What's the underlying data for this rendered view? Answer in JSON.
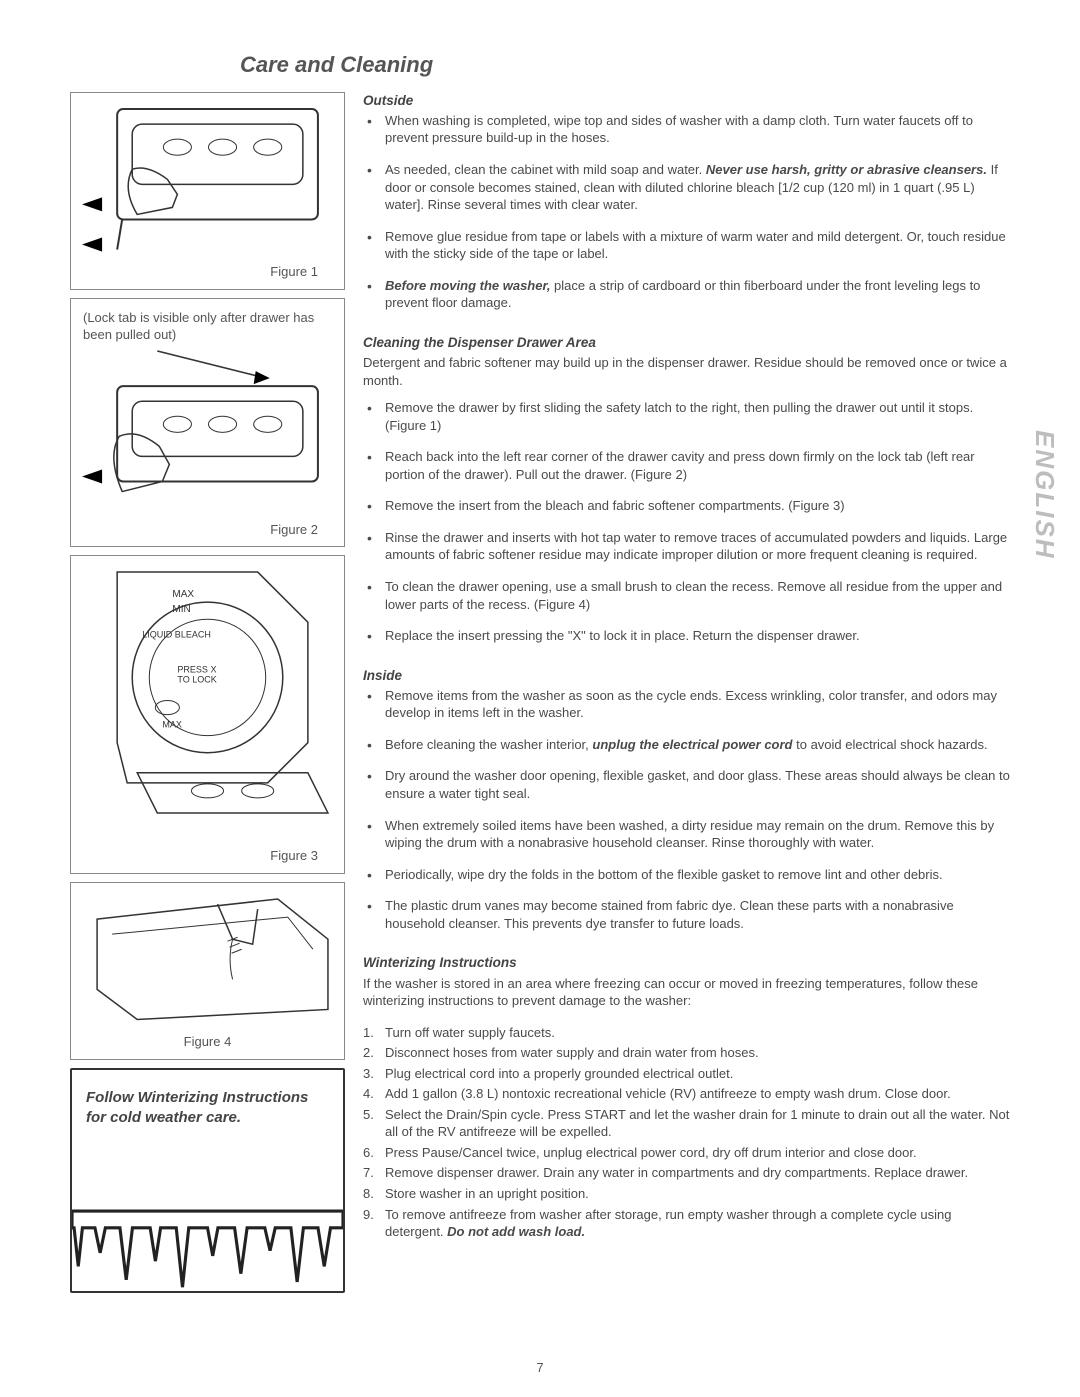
{
  "page_title": "Care and Cleaning",
  "side_tab": "ENGLISH",
  "page_number": "7",
  "colors": {
    "text": "#4a4a4a",
    "heading": "#444",
    "rule": "#888",
    "side_tab": "#bdbdbd"
  },
  "figures": {
    "lock_note": "(Lock tab is visible only after drawer has been pulled out)",
    "fig1": "Figure 1",
    "fig2": "Figure 2",
    "fig3": "Figure 3",
    "fig4": "Figure 4"
  },
  "winter_box": "Follow Winterizing Instructions for cold weather care.",
  "outside": {
    "heading": "Outside",
    "items": [
      {
        "html": "When washing is completed, wipe top and sides of washer with a damp cloth.  Turn water faucets off to prevent pressure build-up in the hoses."
      },
      {
        "html": "As needed, clean the cabinet with mild soap and water. <span class=\"bi\">Never use harsh, gritty or abrasive cleansers.</span> If door or console becomes stained, clean with diluted chlorine bleach [1/2 cup (120 ml) in 1 quart (.95 L) water]. Rinse several times with clear water."
      },
      {
        "html": "Remove glue residue from tape or labels with a mixture of warm water and mild detergent. Or, touch residue with the sticky side of the tape or label."
      },
      {
        "html": "<span class=\"bi\">Before moving the washer,</span> place a strip of cardboard or thin fiberboard under the front leveling legs to prevent floor damage."
      }
    ]
  },
  "dispenser": {
    "heading": "Cleaning the Dispenser Drawer Area",
    "intro": "Detergent and fabric softener may build up in the dispenser drawer. Residue should be removed once or twice a month.",
    "items": [
      {
        "html": "Remove the drawer by first sliding the safety latch to the right, then pulling the drawer out until it stops. (Figure 1)"
      },
      {
        "html": "Reach back into the left rear corner of the drawer cavity and press down firmly on the lock tab (left rear portion of the drawer). Pull out the drawer. (Figure 2)"
      },
      {
        "html": "Remove the insert from the bleach and fabric softener compartments. (Figure 3)"
      },
      {
        "html": "Rinse the drawer and inserts with hot tap water to remove traces of accumulated powders and liquids.  Large amounts of fabric softener residue may indicate improper dilution or more frequent cleaning is required."
      },
      {
        "html": "To clean the drawer opening, use a small brush to clean the recess. Remove all residue from the upper and lower parts of the recess. (Figure 4)"
      },
      {
        "html": "Replace the insert pressing the \"X\" to lock it in place. Return the dispenser drawer."
      }
    ]
  },
  "inside": {
    "heading": "Inside",
    "items": [
      {
        "html": "Remove items from the washer as soon as the cycle ends. Excess wrinkling, color transfer, and odors may develop in items left in the washer."
      },
      {
        "html": "Before cleaning the washer interior, <span class=\"bi\">unplug the electrical power cord</span> to avoid electrical shock hazards."
      },
      {
        "html": "Dry around the washer door opening, flexible gasket, and door glass. These areas should always be clean to ensure a water tight seal."
      },
      {
        "html": "When extremely soiled items have been washed, a dirty residue may remain on the drum. Remove this by wiping the drum with a nonabrasive household cleanser. Rinse thoroughly with water."
      },
      {
        "html": "Periodically, wipe dry the folds in the bottom of the flexible gasket to remove lint and other debris."
      },
      {
        "html": "The plastic drum vanes may become stained from fabric dye. Clean these parts with a nonabrasive household cleanser. This prevents dye transfer to future loads."
      }
    ]
  },
  "winterizing": {
    "heading": "Winterizing Instructions",
    "intro": "If the washer is stored in an area where freezing can occur or moved in freezing temperatures, follow these winterizing instructions to prevent damage to the washer:",
    "steps": [
      {
        "html": "Turn off water supply faucets."
      },
      {
        "html": "Disconnect hoses from water supply and drain water from hoses."
      },
      {
        "html": "Plug electrical cord into a properly grounded electrical outlet."
      },
      {
        "html": "Add 1 gallon (3.8 L) nontoxic recreational vehicle (RV) antifreeze to empty wash drum. Close door."
      },
      {
        "html": "Select the Drain/Spin cycle. Press START and let the washer drain for 1 minute to drain out all the water. Not all of the RV antifreeze will be expelled."
      },
      {
        "html": "Press Pause/Cancel twice, unplug electrical power cord, dry off drum interior and close door."
      },
      {
        "html": "Remove dispenser drawer. Drain any water in compartments and dry compartments. Replace drawer."
      },
      {
        "html": "Store washer in an upright position."
      },
      {
        "html": "To remove antifreeze from washer after storage, run empty washer through a complete cycle using detergent.  <span class=\"bi\">Do not add wash load.</span>"
      }
    ]
  }
}
